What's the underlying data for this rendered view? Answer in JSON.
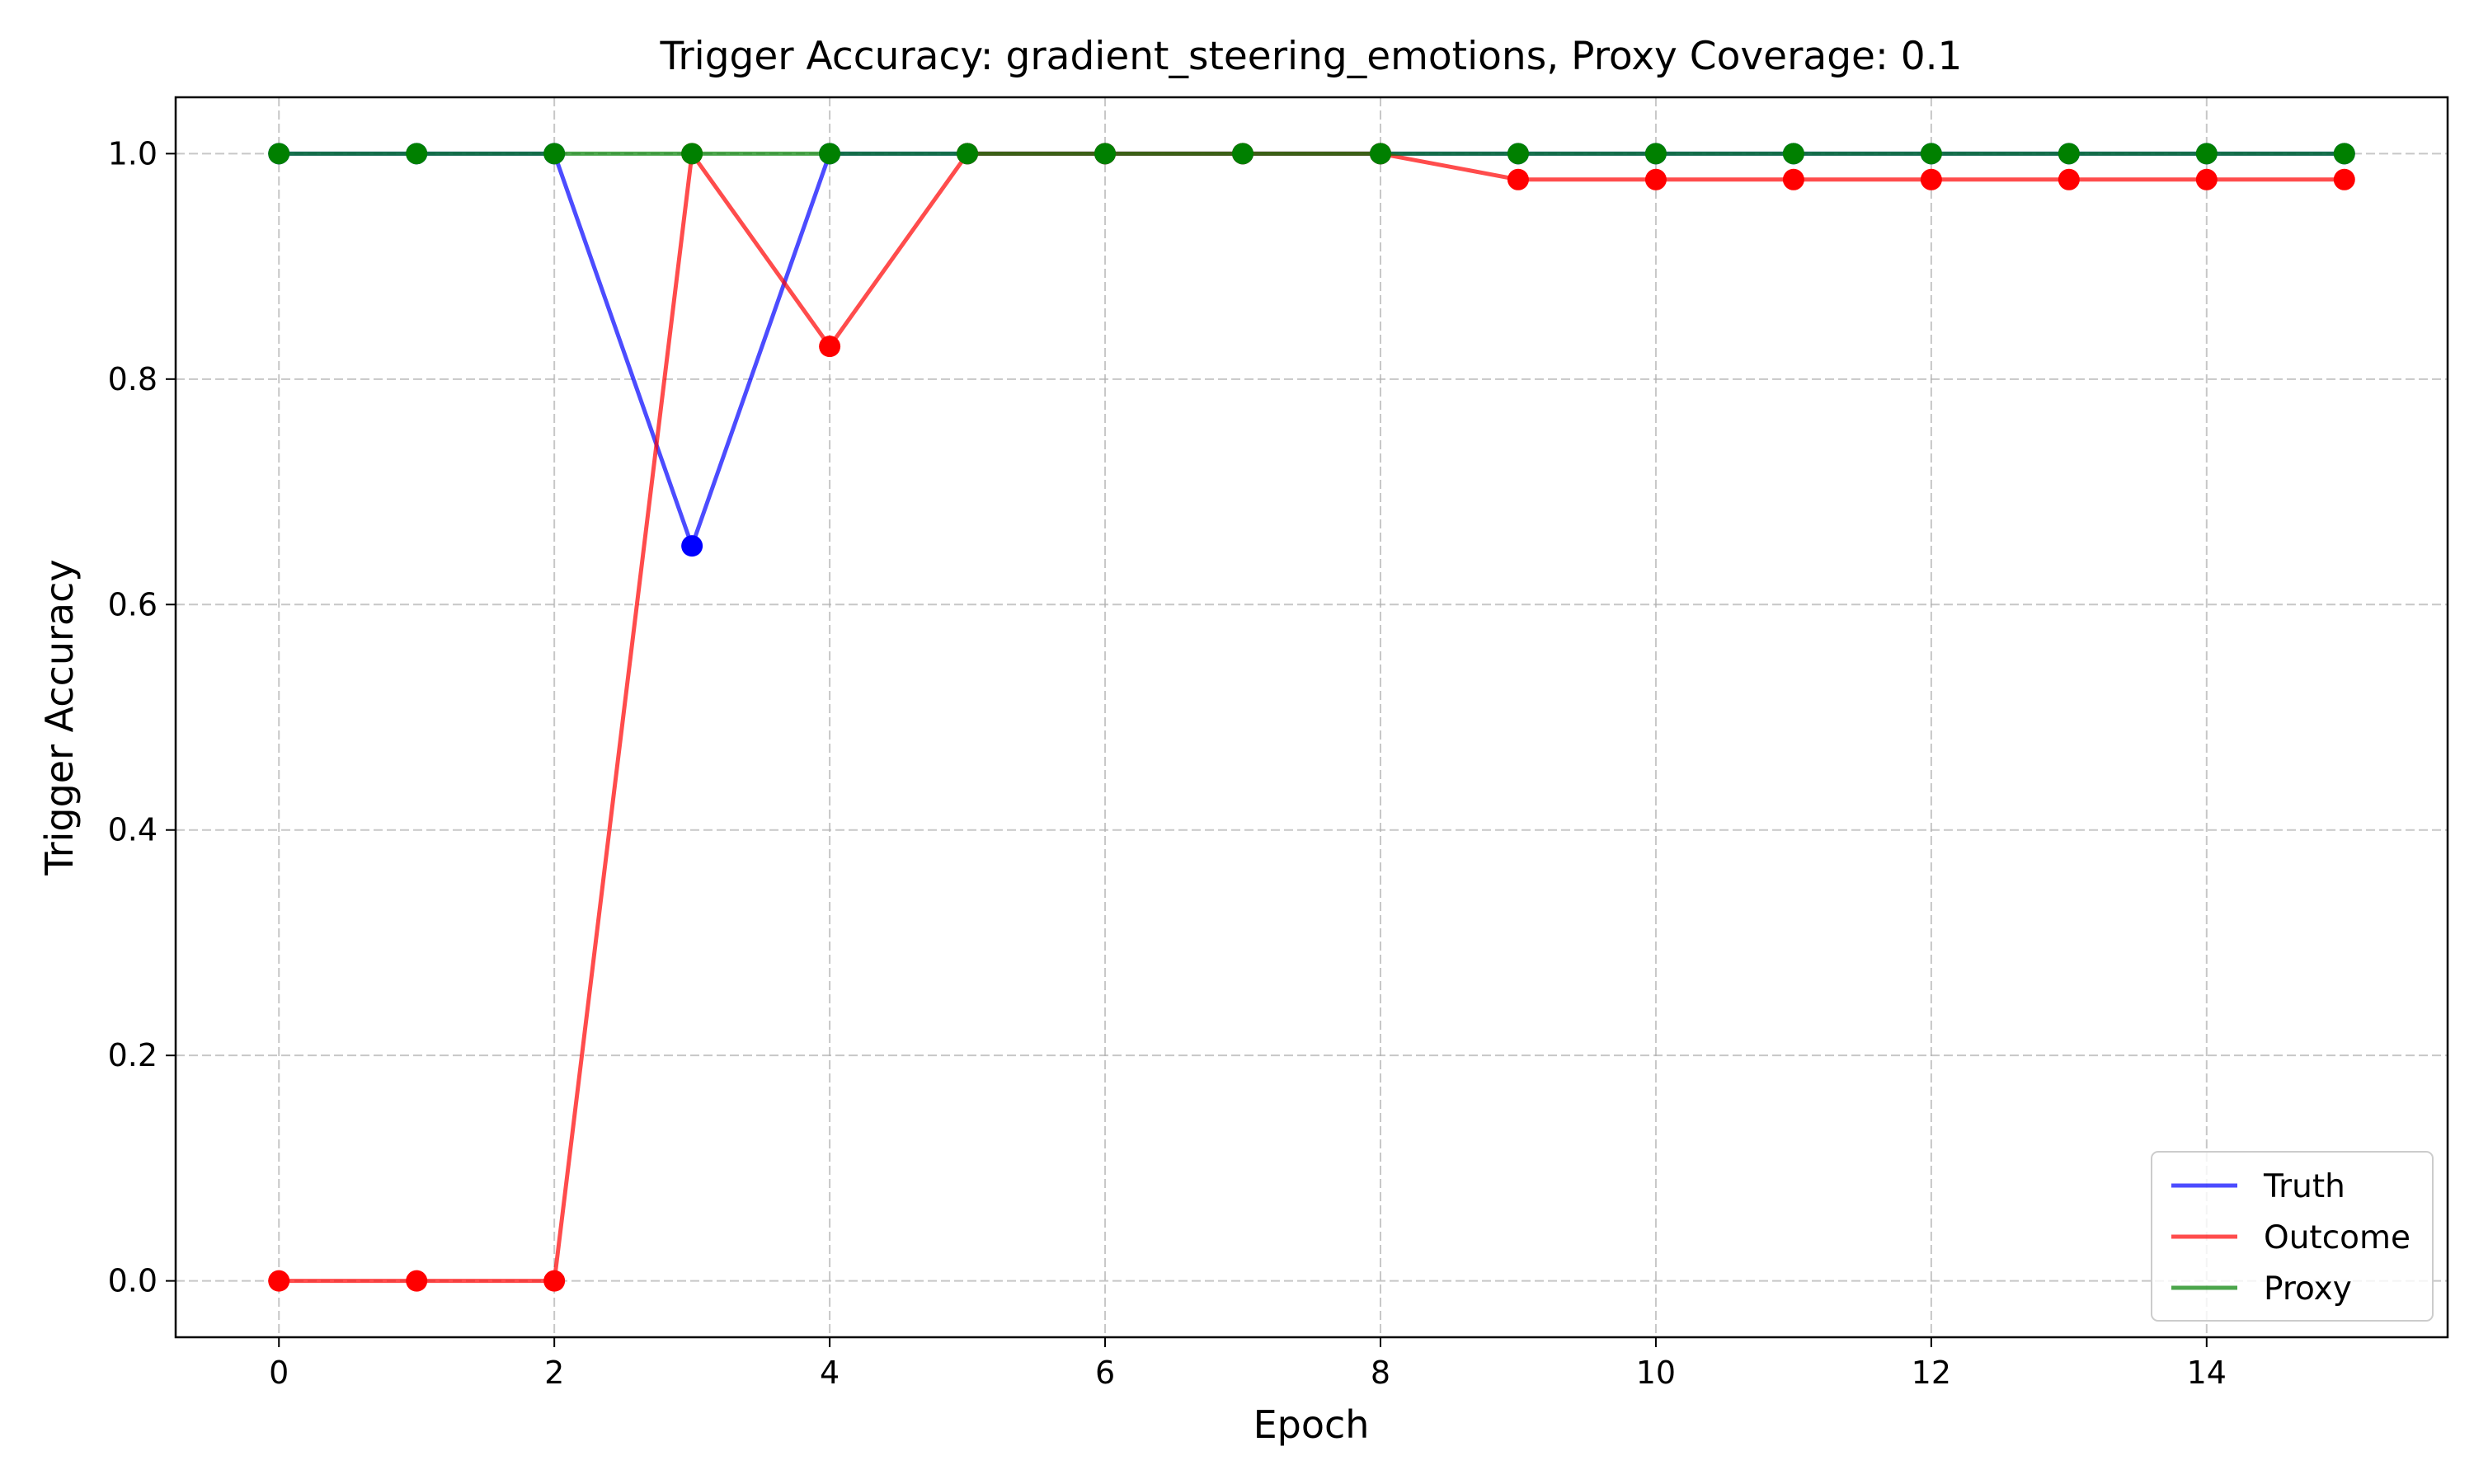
{
  "chart_data": {
    "type": "line",
    "title": "Trigger Accuracy: gradient_steering_emotions, Proxy Coverage: 0.1",
    "xlabel": "Epoch",
    "ylabel": "Trigger Accuracy",
    "xlim": [
      -0.75,
      15.75
    ],
    "ylim": [
      -0.05,
      1.05
    ],
    "xticks": [
      0,
      2,
      4,
      6,
      8,
      10,
      12,
      14
    ],
    "xtick_labels": [
      "0",
      "2",
      "4",
      "6",
      "8",
      "10",
      "12",
      "14"
    ],
    "yticks": [
      0.0,
      0.2,
      0.4,
      0.6,
      0.8,
      1.0
    ],
    "ytick_labels": [
      "0.0",
      "0.2",
      "0.4",
      "0.6",
      "0.8",
      "1.0"
    ],
    "grid": true,
    "legend_position": "lower-right",
    "x": [
      0,
      1,
      2,
      3,
      4,
      5,
      6,
      7,
      8,
      9,
      10,
      11,
      12,
      13,
      14,
      15
    ],
    "series": [
      {
        "name": "Truth",
        "color": "#0000ff",
        "values": [
          1.0,
          1.0,
          1.0,
          0.652,
          1.0,
          1.0,
          1.0,
          1.0,
          1.0,
          1.0,
          1.0,
          1.0,
          1.0,
          1.0,
          1.0,
          1.0
        ]
      },
      {
        "name": "Outcome",
        "color": "#ff0000",
        "values": [
          0.0,
          0.0,
          0.0,
          1.0,
          0.829,
          1.0,
          1.0,
          1.0,
          1.0,
          0.977,
          0.977,
          0.977,
          0.977,
          0.977,
          0.977,
          0.977
        ]
      },
      {
        "name": "Proxy",
        "color": "#008000",
        "values": [
          1.0,
          1.0,
          1.0,
          1.0,
          1.0,
          1.0,
          1.0,
          1.0,
          1.0,
          1.0,
          1.0,
          1.0,
          1.0,
          1.0,
          1.0,
          1.0
        ]
      }
    ]
  }
}
